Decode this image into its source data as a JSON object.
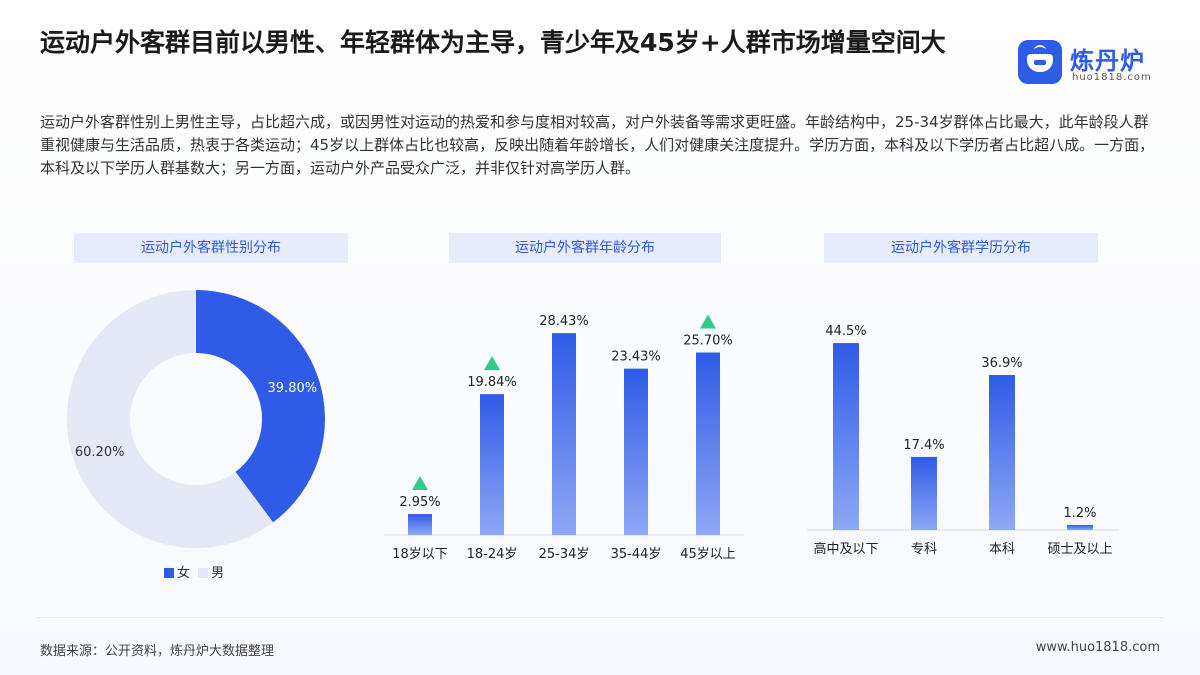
{
  "title": "运动户外客群目前以男性、年轻群体为主导，青少年及45岁+人群市场增量空间大",
  "logo": {
    "name": "炼丹炉",
    "url": "huo1818.com"
  },
  "description": "运动户外客群性别上男性主导，占比超六成，或因男性对运动的热爱和参与度相对较高，对户外装备等需求更旺盛。年龄结构中，25-34岁群体占比最大，此年龄段人群重视健康与生活品质，热衷于各类运动；45岁以上群体占比也较高，反映出随着年龄增长，人们对健康关注度提升。学历方面，本科及以下学历者占比超八成。一方面，本科及以下学历人群基数大；另一方面，运动户外产品受众广泛，并非仅针对高学历人群。",
  "colors": {
    "accent": "#2f5be7",
    "male": "#e4e8f7",
    "triangle": "#2ecc8a"
  },
  "chart_data": [
    {
      "type": "pie",
      "title": "运动户外客群性别分布",
      "categories": [
        "女",
        "男"
      ],
      "values": [
        39.8,
        60.2
      ],
      "labels": [
        "39.80%",
        "60.20%"
      ],
      "legend": "bottom"
    },
    {
      "type": "bar",
      "title": "运动户外客群年龄分布",
      "categories": [
        "18岁以下",
        "18-24岁",
        "25-34岁",
        "35-44岁",
        "45岁以上"
      ],
      "values": [
        2.95,
        19.84,
        28.43,
        23.43,
        25.7
      ],
      "labels": [
        "2.95%",
        "19.84%",
        "28.43%",
        "23.43%",
        "25.70%"
      ],
      "highlighted": [
        "18岁以下",
        "18-24岁",
        "45岁以上"
      ],
      "ylim": [
        0,
        30
      ]
    },
    {
      "type": "bar",
      "title": "运动户外客群学历分布",
      "categories": [
        "高中及以下",
        "专科",
        "本科",
        "硕士及以上"
      ],
      "values": [
        44.5,
        17.4,
        36.9,
        1.2
      ],
      "labels": [
        "44.5%",
        "17.4%",
        "36.9%",
        "1.2%"
      ],
      "ylim": [
        0,
        45
      ]
    }
  ],
  "footer": {
    "source": "数据来源：公开资料，炼丹炉大数据整理",
    "website": "www.huo1818.com"
  }
}
